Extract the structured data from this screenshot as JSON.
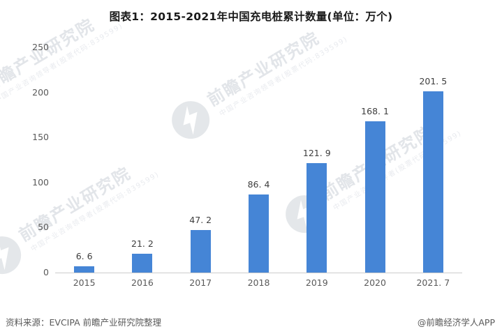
{
  "title": "图表1：2015-2021年中国充电桩累计数量(单位：万个)",
  "watermark": {
    "main": "前瞻产业研究院",
    "sub": "中国产业咨询领导者(股票代码:839599)",
    "logo": "qianzhan-circle-bolt-logo"
  },
  "footer": {
    "source": "资料来源：EVCIPA 前瞻产业研究院整理",
    "credit": "@前瞻经济学人APP"
  },
  "chart_data": {
    "type": "bar",
    "title": "图表1：2015-2021年中国充电桩累计数量(单位：万个)",
    "unit": "万个",
    "categories": [
      "2015",
      "2016",
      "2017",
      "2018",
      "2019",
      "2020",
      "2021.7"
    ],
    "values": [
      6.6,
      21.2,
      47.2,
      86.4,
      121.9,
      168.1,
      201.5
    ],
    "category_labels": [
      "2015",
      "2016",
      "2017",
      "2018",
      "2019",
      "2020",
      "2021. 7"
    ],
    "value_labels": [
      "6. 6",
      "21. 2",
      "47. 2",
      "86. 4",
      "121. 9",
      "168. 1",
      "201. 5"
    ],
    "xlabel": "",
    "ylabel": "",
    "ylim": [
      0,
      250
    ],
    "y_ticks": [
      0,
      50,
      100,
      150,
      200,
      250
    ],
    "grid": false,
    "legend": "none",
    "bar_color": "#4585d6",
    "axis_line_color": "#cccccc",
    "value_label_color": "#3d3d3d",
    "tick_label_color": "#595959"
  }
}
